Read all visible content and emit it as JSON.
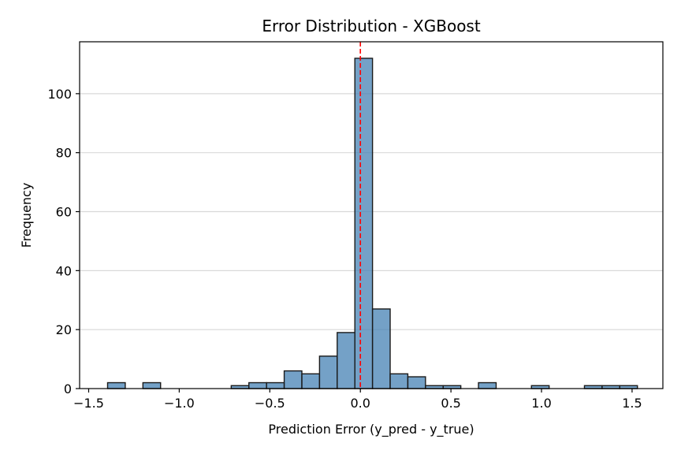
{
  "chart_data": {
    "type": "bar",
    "title": "Error Distribution - XGBoost",
    "xlabel": "Prediction Error (y_pred - y_true)",
    "ylabel": "Frequency",
    "xlim": [
      -1.55,
      1.67
    ],
    "ylim": [
      0,
      117.6
    ],
    "xticks": [
      -1.5,
      -1.0,
      -0.5,
      0.0,
      0.5,
      1.0,
      1.5
    ],
    "xtick_labels": [
      "−1.5",
      "−1.0",
      "−0.5",
      "0.0",
      "0.5",
      "1.0",
      "1.5"
    ],
    "yticks": [
      0,
      20,
      40,
      60,
      80,
      100
    ],
    "ytick_labels": [
      "0",
      "20",
      "40",
      "60",
      "80",
      "100"
    ],
    "grid": "y",
    "bar_color": "#4682b4",
    "reference_line": {
      "x": 0.0,
      "color": "#ff0000",
      "style": "dashed"
    },
    "bin_width": 0.0975,
    "bin_left_edges": [
      -1.3955,
      -1.298,
      -1.2005,
      -1.103,
      -1.0055,
      -0.908,
      -0.8105,
      -0.713,
      -0.6155,
      -0.518,
      -0.4205,
      -0.323,
      -0.2255,
      -0.128,
      -0.0305,
      0.067,
      0.1645,
      0.262,
      0.3595,
      0.457,
      0.5545,
      0.652,
      0.7495,
      0.847,
      0.9445,
      1.042,
      1.1395,
      1.237,
      1.3345,
      1.432
    ],
    "values": [
      2,
      0,
      2,
      0,
      0,
      0,
      0,
      1,
      2,
      2,
      6,
      5,
      11,
      19,
      112,
      27,
      5,
      4,
      1,
      1,
      0,
      2,
      0,
      0,
      1,
      0,
      0,
      1,
      1,
      1
    ]
  }
}
